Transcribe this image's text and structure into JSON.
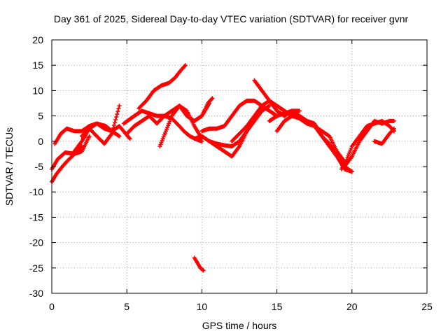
{
  "chart_data": {
    "type": "scatter",
    "title": "Day 361 of 2025, Sidereal Day-to-day VTEC variation (SDTVAR) for receiver gvnr",
    "xlabel": "GPS time / hours",
    "ylabel": "SDTVAR / TECUs",
    "xlim": [
      0,
      25
    ],
    "ylim": [
      -30,
      20
    ],
    "xticks": [
      0,
      5,
      10,
      15,
      20,
      25
    ],
    "yticks": [
      -30,
      -25,
      -20,
      -15,
      -10,
      -5,
      0,
      5,
      10,
      15,
      20
    ],
    "grid": true,
    "marker": "+",
    "color": "#ff0000",
    "series": [
      {
        "name": "a",
        "x": [
          0,
          0.3,
          0.7,
          1.0,
          1.5,
          2.0
        ],
        "y": [
          -8,
          -6.5,
          -5,
          -4,
          -2.5,
          -1
        ]
      },
      {
        "name": "b",
        "x": [
          0,
          0.4,
          0.9,
          1.5,
          2.0,
          2.5
        ],
        "y": [
          -5.5,
          -3.5,
          -2.2,
          -2.5,
          -2,
          1
        ]
      },
      {
        "name": "c",
        "x": [
          0.2,
          0.6,
          1.0,
          1.5,
          2.0,
          2.5,
          3.0,
          3.6,
          4.0,
          4.5
        ],
        "y": [
          -0.5,
          1.5,
          2.5,
          2,
          2,
          3,
          3.5,
          3,
          2,
          1
        ]
      },
      {
        "name": "d",
        "x": [
          1.5,
          2.0,
          2.5,
          3.0,
          3.5,
          4.0,
          4.5,
          5.2
        ],
        "y": [
          -2,
          0,
          2.5,
          3.5,
          2.5,
          2,
          3,
          0.5
        ]
      },
      {
        "name": "e",
        "x": [
          2.0,
          2.5,
          3.0,
          3.5,
          4.0,
          4.5
        ],
        "y": [
          1,
          2.5,
          1,
          -0.5,
          1.5,
          7
        ]
      },
      {
        "name": "f",
        "x": [
          4.8,
          5.5,
          6.0,
          6.5,
          7.0,
          7.5,
          8.0,
          8.5,
          8.8,
          9.2,
          9.7,
          10.0
        ],
        "y": [
          3.5,
          5,
          6,
          5.5,
          5,
          5,
          4.5,
          3,
          2,
          1,
          0.3,
          0
        ]
      },
      {
        "name": "g",
        "x": [
          5.0,
          5.5,
          6.0,
          6.5,
          7.0,
          7.5,
          8.0,
          8.5,
          9.0,
          9.5,
          10.0,
          10.5
        ],
        "y": [
          1.5,
          3,
          4,
          5,
          3.5,
          5,
          6,
          7,
          5,
          4,
          5,
          7.5
        ]
      },
      {
        "name": "h",
        "x": [
          5.8,
          6.3,
          6.8,
          7.3,
          7.8,
          8.2,
          8.6,
          8.9
        ],
        "y": [
          6.5,
          8,
          10,
          11,
          11.5,
          12.5,
          14,
          15
        ]
      },
      {
        "name": "i",
        "x": [
          7.2,
          7.6,
          8.0,
          8.5,
          9.0,
          9.5,
          10.0
        ],
        "y": [
          -1,
          2,
          5,
          7,
          6,
          3,
          0.5
        ]
      },
      {
        "name": "j",
        "x": [
          10.0,
          10.4,
          10.7
        ],
        "y": [
          5,
          7.5,
          8.5
        ]
      },
      {
        "name": "k",
        "x": [
          9.5,
          10.0,
          10.5,
          11.0,
          11.5,
          12.0,
          12.5,
          13.0,
          13.5,
          14.0
        ],
        "y": [
          0.5,
          1,
          0,
          -1,
          -2,
          -3,
          -1,
          2,
          4,
          6
        ]
      },
      {
        "name": "l",
        "x": [
          10.0,
          10.5,
          11.0,
          11.5,
          12.0,
          12.5,
          13.0,
          13.5,
          14.0,
          14.5,
          15.0
        ],
        "y": [
          2,
          2.5,
          2.5,
          3,
          5,
          7,
          8,
          8,
          7,
          6,
          5
        ]
      },
      {
        "name": "m",
        "x": [
          10.5,
          11.0,
          11.5,
          12.0,
          12.5,
          13.0,
          13.5,
          14.0,
          14.5
        ],
        "y": [
          0,
          -0.5,
          -0.8,
          -1,
          0,
          2,
          4.5,
          6,
          7
        ]
      },
      {
        "name": "n",
        "x": [
          12.0,
          12.5,
          13.0,
          13.5,
          14.0,
          14.5,
          15.0,
          15.5,
          16.0
        ],
        "y": [
          0,
          1.5,
          3,
          5,
          7,
          8,
          7,
          6,
          5
        ]
      },
      {
        "name": "o",
        "x": [
          13.5,
          14.0,
          14.5,
          15.0,
          15.5,
          16.0,
          16.5
        ],
        "y": [
          12,
          10,
          8,
          6,
          5,
          6,
          6
        ]
      },
      {
        "name": "p",
        "x": [
          14.5,
          15.0,
          15.5,
          16.0,
          16.5,
          17.0,
          17.5,
          18.0,
          18.5,
          19.0,
          19.5,
          20.0
        ],
        "y": [
          4,
          5,
          5.5,
          6,
          5,
          4,
          3,
          1,
          -1,
          -3,
          -5,
          -6
        ]
      },
      {
        "name": "q",
        "x": [
          15.0,
          15.5,
          16.0,
          16.5,
          17.0,
          17.5,
          18.0,
          18.5,
          19.0,
          19.5
        ],
        "y": [
          2,
          4,
          5,
          4.5,
          3.5,
          3,
          2,
          1,
          -2,
          -4
        ]
      },
      {
        "name": "r",
        "x": [
          16.0,
          16.5,
          17.0,
          17.5,
          18.0,
          18.5,
          19.0,
          19.5,
          20.0
        ],
        "y": [
          5.5,
          5,
          4,
          3.5,
          1,
          -0.5,
          -3,
          -5.5,
          -6
        ]
      },
      {
        "name": "s",
        "x": [
          19.3,
          19.6,
          20.0,
          20.5,
          21.0,
          21.5,
          22.0,
          22.5,
          22.8
        ],
        "y": [
          -5.5,
          -4,
          -1,
          1,
          3,
          3.5,
          4,
          3,
          2
        ]
      },
      {
        "name": "t",
        "x": [
          19.5,
          20.0,
          20.5,
          21.0,
          21.5,
          22.0,
          22.5,
          22.8
        ],
        "y": [
          -5,
          -3,
          0,
          2,
          4,
          3.5,
          4,
          4
        ]
      },
      {
        "name": "u",
        "x": [
          21.5,
          22.0,
          22.5,
          22.8
        ],
        "y": [
          0,
          -0.5,
          1.5,
          2.5
        ]
      },
      {
        "name": "v",
        "x": [
          9.5,
          9.7,
          9.9,
          10.1
        ],
        "y": [
          -23,
          -24,
          -25,
          -25.5
        ]
      }
    ]
  }
}
